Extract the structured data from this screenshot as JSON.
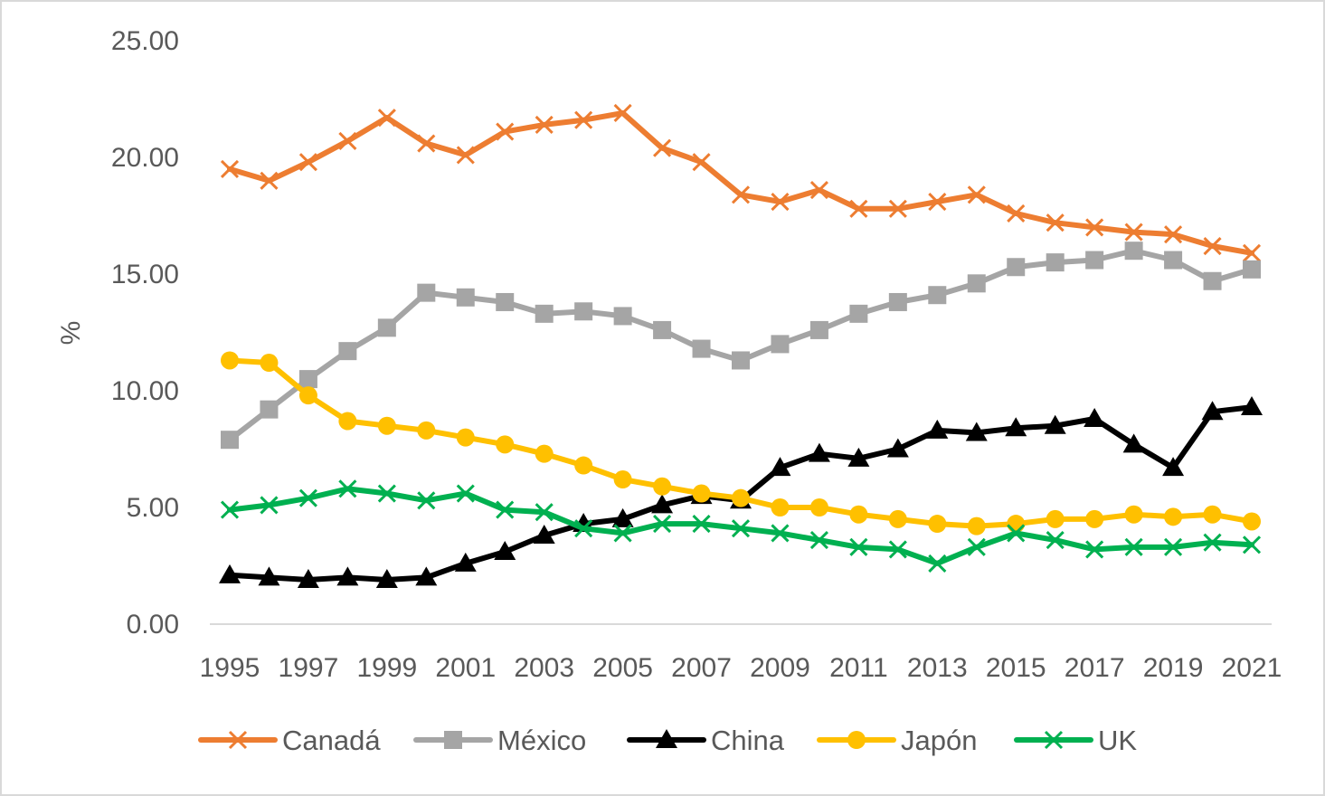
{
  "chart_data": {
    "type": "line",
    "title": "",
    "xlabel": "",
    "ylabel": "%",
    "ylim": [
      0,
      25
    ],
    "yticks": [
      "0.00",
      "5.00",
      "10.00",
      "15.00",
      "20.00",
      "25.00"
    ],
    "x": [
      1995,
      1996,
      1997,
      1998,
      1999,
      2000,
      2001,
      2002,
      2003,
      2004,
      2005,
      2006,
      2007,
      2008,
      2009,
      2010,
      2011,
      2012,
      2013,
      2014,
      2015,
      2016,
      2017,
      2018,
      2019,
      2020,
      2021
    ],
    "xtick_labels": [
      "1995",
      "1997",
      "1999",
      "2001",
      "2003",
      "2005",
      "2007",
      "2009",
      "2011",
      "2013",
      "2015",
      "2017",
      "2019",
      "2021"
    ],
    "gridlines": false,
    "legend_position": "bottom",
    "series": [
      {
        "name": "Canadá",
        "color": "#ED7D31",
        "marker": "x",
        "values": [
          19.5,
          19.0,
          19.8,
          20.7,
          21.7,
          20.6,
          20.1,
          21.1,
          21.4,
          21.6,
          21.9,
          20.4,
          19.8,
          18.4,
          18.1,
          18.6,
          17.8,
          17.8,
          18.1,
          18.4,
          17.6,
          17.2,
          17.0,
          16.8,
          16.7,
          16.2,
          15.9
        ]
      },
      {
        "name": "México",
        "color": "#A5A5A5",
        "marker": "square",
        "values": [
          7.9,
          9.2,
          10.5,
          11.7,
          12.7,
          14.2,
          14.0,
          13.8,
          13.3,
          13.4,
          13.2,
          12.6,
          11.8,
          11.3,
          12.0,
          12.6,
          13.3,
          13.8,
          14.1,
          14.6,
          15.3,
          15.5,
          15.6,
          16.0,
          15.6,
          14.7,
          15.2
        ]
      },
      {
        "name": "China",
        "color": "#000000",
        "marker": "triangle",
        "values": [
          2.1,
          2.0,
          1.9,
          2.0,
          1.9,
          2.0,
          2.6,
          3.1,
          3.8,
          4.3,
          4.5,
          5.1,
          5.5,
          5.3,
          6.7,
          7.3,
          7.1,
          7.5,
          8.3,
          8.2,
          8.4,
          8.5,
          8.8,
          7.7,
          6.7,
          9.1,
          9.3
        ]
      },
      {
        "name": "Japón",
        "color": "#FFC000",
        "marker": "circle",
        "values": [
          11.3,
          11.2,
          9.8,
          8.7,
          8.5,
          8.3,
          8.0,
          7.7,
          7.3,
          6.8,
          6.2,
          5.9,
          5.6,
          5.4,
          5.0,
          5.0,
          4.7,
          4.5,
          4.3,
          4.2,
          4.3,
          4.5,
          4.5,
          4.7,
          4.6,
          4.7,
          4.4
        ]
      },
      {
        "name": "UK",
        "color": "#00B050",
        "marker": "x",
        "values": [
          4.9,
          5.1,
          5.4,
          5.8,
          5.6,
          5.3,
          5.6,
          4.9,
          4.8,
          4.1,
          3.9,
          4.3,
          4.3,
          4.1,
          3.9,
          3.6,
          3.3,
          3.2,
          2.6,
          3.3,
          3.9,
          3.6,
          3.2,
          3.3,
          3.3,
          3.5,
          3.4
        ]
      }
    ]
  }
}
